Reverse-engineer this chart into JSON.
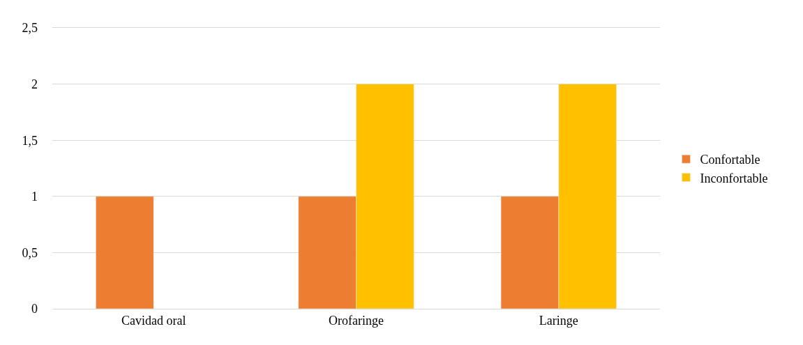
{
  "chart_data": {
    "type": "bar",
    "categories": [
      "Cavidad oral",
      "Orofaringe",
      "Laringe"
    ],
    "series": [
      {
        "name": "Confortable",
        "color": "#ed7d31",
        "values": [
          1,
          1,
          1
        ]
      },
      {
        "name": "Inconfortable",
        "color": "#ffc000",
        "values": [
          null,
          2,
          2
        ]
      }
    ],
    "ylim": [
      0,
      2.5
    ],
    "yticks": [
      0,
      {
        "value": 0.5,
        "label": "0,5"
      },
      1,
      {
        "value": 1.5,
        "label": "1,5"
      },
      2,
      {
        "value": 2.5,
        "label": "2,5"
      }
    ],
    "grid": "y",
    "legend": "right"
  }
}
